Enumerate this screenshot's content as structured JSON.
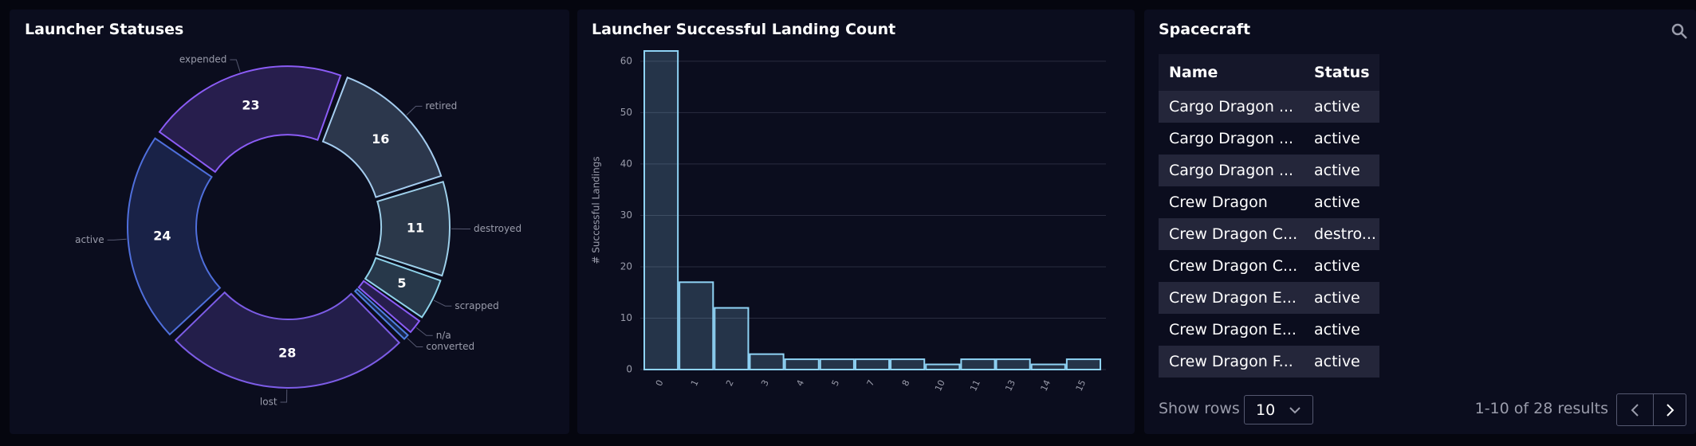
{
  "chart_data": [
    {
      "type": "pie",
      "title": "Launcher Statuses",
      "categories": [
        "expended",
        "retired",
        "destroyed",
        "scrapped",
        "n/a",
        "converted",
        "lost",
        "active"
      ],
      "values": [
        23,
        16,
        11,
        5,
        2,
        1,
        28,
        24
      ],
      "colors": [
        "#8b5cf6",
        "#a5cdf0",
        "#9ed0ea",
        "#8fd3ea",
        "#8b5cf6",
        "#4f7fe0",
        "#7c5ce6",
        "#4f6fdc"
      ],
      "donut": true
    },
    {
      "type": "bar",
      "title": "Launcher Successful Landing Count",
      "y_label": "# Successful Landings",
      "categories": [
        "0",
        "1",
        "2",
        "3",
        "4",
        "5",
        "7",
        "8",
        "10",
        "11",
        "13",
        "14",
        "15"
      ],
      "values": [
        62,
        17,
        12,
        3,
        2,
        2,
        2,
        2,
        1,
        2,
        2,
        1,
        2
      ],
      "color": "#8fd3f5",
      "ylim": [
        0,
        62
      ],
      "yticks": [
        0,
        10,
        20,
        30,
        40,
        50,
        60
      ],
      "grid": true
    }
  ],
  "spacecraft": {
    "title": "Spacecraft",
    "columns": [
      "Name",
      "Status"
    ],
    "rows": [
      [
        "Cargo Dragon ...",
        "active"
      ],
      [
        "Cargo Dragon ...",
        "active"
      ],
      [
        "Cargo Dragon ...",
        "active"
      ],
      [
        "Crew Dragon",
        "active"
      ],
      [
        "Crew Dragon C...",
        "destro..."
      ],
      [
        "Crew Dragon C...",
        "active"
      ],
      [
        "Crew Dragon E...",
        "active"
      ],
      [
        "Crew Dragon E...",
        "active"
      ],
      [
        "Crew Dragon F...",
        "active"
      ]
    ],
    "show_rows_label": "Show rows",
    "rows_per_page": "10",
    "results": "1-10 of 28 results"
  }
}
